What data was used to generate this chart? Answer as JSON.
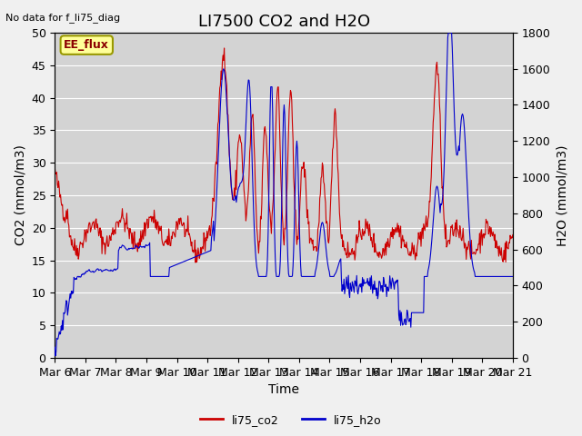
{
  "title": "LI7500 CO2 and H2O",
  "top_left_text": "No data for f_li75_diag",
  "xlabel": "Time",
  "ylabel_left": "CO2 (mmol/m3)",
  "ylabel_right": "H2O (mmol/m3)",
  "ylim_left": [
    0,
    50
  ],
  "ylim_right": [
    0,
    1800
  ],
  "yticks_left": [
    0,
    5,
    10,
    15,
    20,
    25,
    30,
    35,
    40,
    45,
    50
  ],
  "yticks_right": [
    0,
    200,
    400,
    600,
    800,
    1000,
    1200,
    1400,
    1600,
    1800
  ],
  "xtick_labels": [
    "Mar 6",
    "Mar 7",
    "Mar 8",
    "Mar 9",
    "Mar 10",
    "Mar 11",
    "Mar 12",
    "Mar 13",
    "Mar 14",
    "Mar 15",
    "Mar 16",
    "Mar 17",
    "Mar 18",
    "Mar 19",
    "Mar 20",
    "Mar 21"
  ],
  "legend_labels": [
    "li75_co2",
    "li75_h2o"
  ],
  "legend_colors": [
    "#cc0000",
    "#0000cc"
  ],
  "annotation_box_text": "EE_flux",
  "annotation_box_color": "#ffff99",
  "annotation_box_edge": "#999900",
  "background_color": "#e8e8e8",
  "plot_bg_color": "#d3d3d3",
  "grid_color": "#ffffff",
  "line_color_co2": "#cc0000",
  "line_color_h2o": "#0000cc",
  "title_fontsize": 13,
  "label_fontsize": 10,
  "tick_fontsize": 9
}
